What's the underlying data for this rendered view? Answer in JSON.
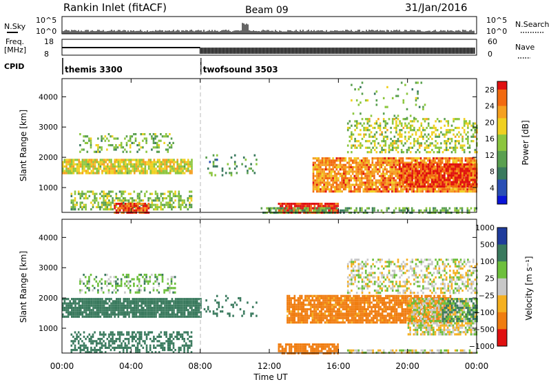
{
  "header": {
    "station": "Rankin Inlet (fitACF)",
    "beam": "Beam 09",
    "date": "31/Jan/2016"
  },
  "status_panel": {
    "nsky_label": "N.Sky",
    "nsearch_label": "N.Search",
    "freq_label_top": "Freq.",
    "freq_label_unit": "[MHz]",
    "nave_label": "Nave",
    "cpid_label": "CPID",
    "left_ticks_noise": [
      "10^5",
      "10^0"
    ],
    "right_ticks_noise": [
      "10^5",
      "10^0"
    ],
    "left_ticks_freq": [
      "18",
      "8"
    ],
    "right_ticks_nave": [
      "60",
      "0"
    ],
    "cpid_modes": [
      {
        "name": "themis 3300",
        "start_hour": 0
      },
      {
        "name": "twofsound 3503",
        "start_hour": 8
      }
    ]
  },
  "x_axis": {
    "label": "Time UT",
    "tick_labels": [
      "00:00",
      "04:00",
      "08:00",
      "12:00",
      "16:00",
      "20:00",
      "00:00"
    ]
  },
  "power_panel": {
    "ylabel": "Slant Range [km]",
    "yticks": [
      "1000",
      "2000",
      "3000",
      "4000"
    ],
    "colorbar_label": "Power [dB]",
    "colorbar_ticks": [
      "4",
      "8",
      "12",
      "16",
      "20",
      "24",
      "28"
    ]
  },
  "velocity_panel": {
    "ylabel": "Slant Range [km]",
    "yticks": [
      "1000",
      "2000",
      "3000",
      "4000"
    ],
    "colorbar_label": "Velocity [m s⁻¹]",
    "colorbar_ticks": [
      "1000",
      "500",
      "100",
      "25",
      "−25",
      "−100",
      "−500",
      "−1000"
    ]
  },
  "chart_data": [
    {
      "type": "heatmap",
      "title": "Power",
      "xlabel": "Time UT",
      "ylabel": "Slant Range [km]",
      "xlim_hours": [
        0,
        24
      ],
      "ylim_km": [
        180,
        4600
      ],
      "colorbar": {
        "label": "Power [dB]",
        "range": [
          0,
          30
        ],
        "ticks": [
          4,
          8,
          12,
          16,
          20,
          24,
          28
        ]
      },
      "regions": [
        {
          "t": [
            0.0,
            7.5
          ],
          "r": [
            1500,
            1950
          ],
          "level_db": 18,
          "density": 0.85
        },
        {
          "t": [
            0.5,
            7.5
          ],
          "r": [
            250,
            900
          ],
          "level_db": 14,
          "density": 0.5
        },
        {
          "t": [
            3.0,
            5.0
          ],
          "r": [
            200,
            500
          ],
          "level_db": 27,
          "density": 0.9
        },
        {
          "t": [
            1.0,
            6.5
          ],
          "r": [
            2200,
            2800
          ],
          "level_db": 13,
          "density": 0.3
        },
        {
          "t": [
            8.2,
            11.3
          ],
          "r": [
            1400,
            2100
          ],
          "level_db": 10,
          "density": 0.15
        },
        {
          "t": [
            12.5,
            16.0
          ],
          "r": [
            180,
            500
          ],
          "level_db": 29,
          "density": 0.95
        },
        {
          "t": [
            11.5,
            24.0
          ],
          "r": [
            180,
            350
          ],
          "level_db": 12,
          "density": 0.5
        },
        {
          "t": [
            14.5,
            24.0
          ],
          "r": [
            900,
            2000
          ],
          "level_db": 24,
          "density": 0.85
        },
        {
          "t": [
            19.5,
            24.0
          ],
          "r": [
            1000,
            1800
          ],
          "level_db": 28,
          "density": 0.9
        },
        {
          "t": [
            16.5,
            24.0
          ],
          "r": [
            2200,
            3300
          ],
          "level_db": 16,
          "density": 0.4
        },
        {
          "t": [
            16.5,
            21.0
          ],
          "r": [
            3300,
            4500
          ],
          "level_db": 13,
          "density": 0.08
        }
      ]
    },
    {
      "type": "heatmap",
      "title": "Velocity",
      "xlabel": "Time UT",
      "ylabel": "Slant Range [km]",
      "xlim_hours": [
        0,
        24
      ],
      "ylim_km": [
        180,
        4600
      ],
      "colorbar": {
        "label": "Velocity [m s⁻¹]",
        "ticks": [
          1000,
          500,
          100,
          25,
          -25,
          -100,
          -500,
          -1000
        ]
      },
      "regions": [
        {
          "t": [
            0.0,
            8.0
          ],
          "r": [
            1400,
            2000
          ],
          "velocity": 200,
          "density": 0.9
        },
        {
          "t": [
            0.5,
            7.5
          ],
          "r": [
            200,
            900
          ],
          "velocity": 200,
          "density": 0.5
        },
        {
          "t": [
            1.0,
            6.5
          ],
          "r": [
            2200,
            2800
          ],
          "velocity": 60,
          "density": 0.35
        },
        {
          "t": [
            8.2,
            11.3
          ],
          "r": [
            1400,
            2100
          ],
          "velocity": 300,
          "density": 0.15
        },
        {
          "t": [
            13.0,
            22.5
          ],
          "r": [
            1200,
            2100
          ],
          "velocity": -150,
          "density": 0.85
        },
        {
          "t": [
            12.5,
            16.0
          ],
          "r": [
            180,
            500
          ],
          "velocity": -200,
          "density": 0.8
        },
        {
          "t": [
            16.5,
            24.0
          ],
          "r": [
            180,
            300
          ],
          "velocity": 0,
          "density": 0.6
        },
        {
          "t": [
            20.0,
            24.0
          ],
          "r": [
            800,
            2000
          ],
          "velocity": 0,
          "density": 0.7
        },
        {
          "t": [
            16.5,
            24.0
          ],
          "r": [
            2200,
            3300
          ],
          "velocity": 0,
          "density": 0.45
        },
        {
          "t": [
            22.0,
            24.0
          ],
          "r": [
            1200,
            2000
          ],
          "velocity": 120,
          "density": 0.6
        }
      ]
    }
  ]
}
